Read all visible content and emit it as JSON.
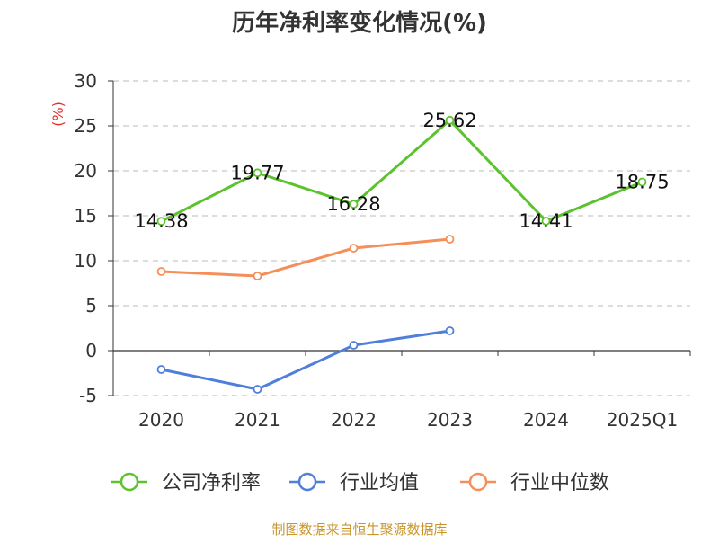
{
  "chart_data": {
    "type": "line",
    "title": "历年净利率变化情况(%)",
    "ylabel": "(%)",
    "categories": [
      "2020",
      "2021",
      "2022",
      "2023",
      "2024",
      "2025Q1"
    ],
    "ylim": [
      -5,
      30
    ],
    "yticks": [
      30,
      25,
      20,
      15,
      10,
      5,
      0,
      -5
    ],
    "grid": true,
    "legend_position": "bottom",
    "series": [
      {
        "name": "公司净利率",
        "color": "#5cc22d",
        "values": [
          14.38,
          19.77,
          16.28,
          25.62,
          14.41,
          18.75
        ],
        "labels": [
          "14.38",
          "19.77",
          "16.28",
          "25.62",
          "14.41",
          "18.75"
        ]
      },
      {
        "name": "行业均值",
        "color": "#4f7fdb",
        "values": [
          -2.1,
          -4.3,
          0.6,
          2.2,
          null,
          null
        ]
      },
      {
        "name": "行业中位数",
        "color": "#f58f5a",
        "values": [
          8.8,
          8.3,
          11.4,
          12.4,
          null,
          null
        ]
      }
    ]
  },
  "footer": {
    "source": "制图数据来自恒生聚源数据库"
  },
  "colors": {
    "title": "#333333",
    "axis_text": "#333333",
    "ylabel": "#e0302a",
    "grid": "#bbbbbb",
    "axis": "#333333",
    "footer": "#c9952b"
  }
}
